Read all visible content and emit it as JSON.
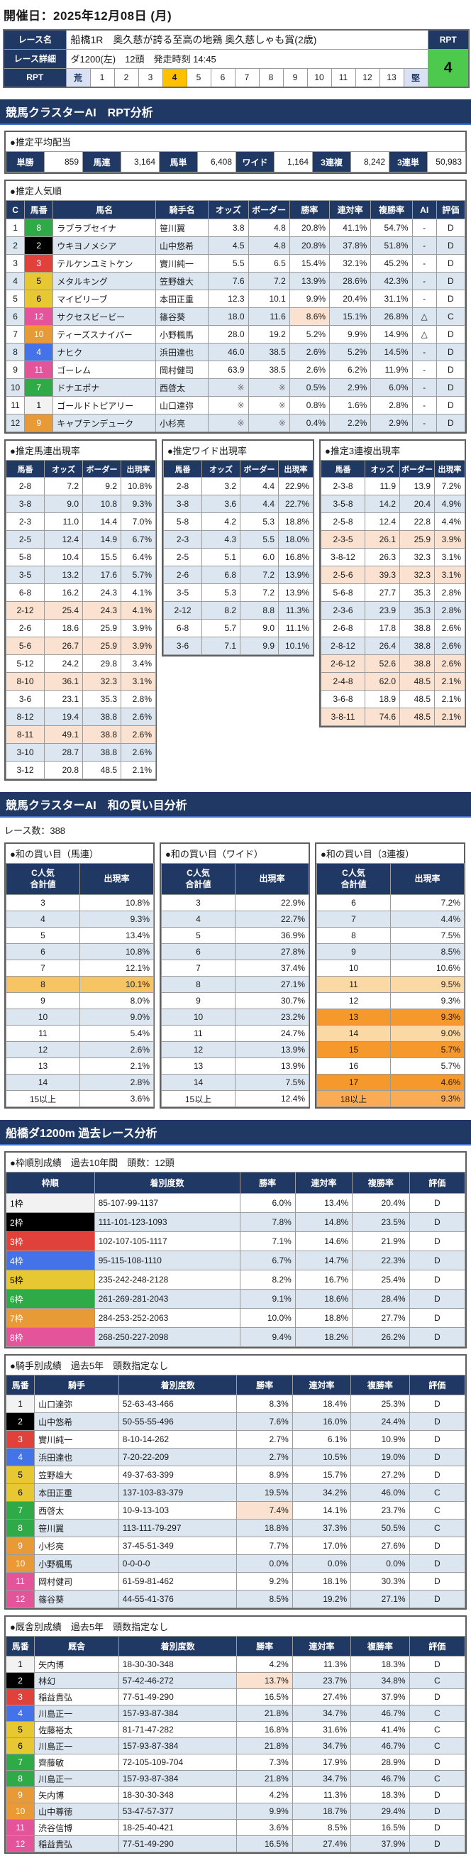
{
  "page": {
    "date_label": "開催日：2025年12月08日 (月)"
  },
  "race_info": {
    "name_label": "レース名",
    "name": "船橋1R　奥久慈が誇る至高の地鶏 奥久慈しゃも賞(2歳)",
    "detail_label": "レース詳細",
    "detail": "ダ1200(左)　12頭　発走時刻 14:45",
    "rpt_label": "RPT",
    "rpt_value": "4",
    "scale_label": "RPT",
    "scale": [
      "荒",
      "1",
      "2",
      "3",
      "4",
      "5",
      "6",
      "7",
      "8",
      "9",
      "10",
      "11",
      "12",
      "13",
      "堅"
    ],
    "scale_active": "4"
  },
  "sections": {
    "rpt_analysis": "競馬クラスターAI　RPT分析",
    "wa_analysis": "競馬クラスターAI　和の買い目分析",
    "past_analysis": "船橋ダ1200m 過去レース分析"
  },
  "race_count_label": "レース数：388",
  "avg_payout": {
    "title": "●推定平均配当",
    "items": [
      [
        "単勝",
        "859"
      ],
      [
        "馬連",
        "3,164"
      ],
      [
        "馬単",
        "6,408"
      ],
      [
        "ワイド",
        "1,164"
      ],
      [
        "3連複",
        "8,242"
      ],
      [
        "3連単",
        "50,983"
      ]
    ]
  },
  "popularity": {
    "title": "●推定人気順",
    "headers": [
      "C",
      "馬番",
      "馬名",
      "騎手名",
      "オッズ",
      "ボーダー",
      "勝率",
      "連対率",
      "複勝率",
      "AI",
      "評価"
    ],
    "rows": [
      [
        "1",
        6,
        "8",
        "ラブラブセイナ",
        "笹川翼",
        "3.8",
        "4.8",
        "20.8%",
        0,
        "41.1%",
        "54.7%",
        "-",
        "D"
      ],
      [
        "2",
        2,
        "2",
        "ウキヨノメシア",
        "山中悠希",
        "4.5",
        "4.8",
        "20.8%",
        0,
        "37.8%",
        "51.8%",
        "-",
        "D"
      ],
      [
        "3",
        3,
        "3",
        "テルケンユミトケン",
        "實川純一",
        "5.5",
        "6.5",
        "15.4%",
        0,
        "32.1%",
        "45.2%",
        "-",
        "D"
      ],
      [
        "4",
        5,
        "5",
        "メタルキング",
        "笠野雄大",
        "7.6",
        "7.2",
        "13.9%",
        0,
        "28.6%",
        "42.3%",
        "-",
        "D"
      ],
      [
        "5",
        5,
        "6",
        "マイビリーブ",
        "本田正重",
        "12.3",
        "10.1",
        "9.9%",
        0,
        "20.4%",
        "31.1%",
        "-",
        "D"
      ],
      [
        "6",
        8,
        "12",
        "サクセスビービー",
        "篠谷葵",
        "18.0",
        "11.6",
        "8.6%",
        1,
        "15.1%",
        "26.8%",
        "△",
        "C"
      ],
      [
        "7",
        7,
        "10",
        "ティーズスナイパー",
        "小野楓馬",
        "28.0",
        "19.2",
        "5.2%",
        0,
        "9.9%",
        "14.9%",
        "△",
        "D"
      ],
      [
        "8",
        4,
        "4",
        "ナヒク",
        "浜田達也",
        "46.0",
        "38.5",
        "2.6%",
        0,
        "5.2%",
        "14.5%",
        "-",
        "D"
      ],
      [
        "9",
        8,
        "11",
        "ゴーレム",
        "岡村健司",
        "63.9",
        "38.5",
        "2.6%",
        0,
        "6.2%",
        "11.9%",
        "-",
        "D"
      ],
      [
        "10",
        6,
        "7",
        "ドナエポナ",
        "西啓太",
        "※",
        "※",
        "0.5%",
        0,
        "2.9%",
        "6.0%",
        "-",
        "D"
      ],
      [
        "11",
        1,
        "1",
        "ゴールドトピアリー",
        "山口達弥",
        "※",
        "※",
        "0.8%",
        0,
        "1.6%",
        "2.8%",
        "-",
        "D"
      ],
      [
        "12",
        7,
        "9",
        "キャプテンデューク",
        "小杉亮",
        "※",
        "※",
        "0.4%",
        0,
        "2.2%",
        "2.9%",
        "-",
        "D"
      ]
    ]
  },
  "occurrence": {
    "headers": [
      "馬番",
      "オッズ",
      "ボーダー",
      "出現率"
    ],
    "umaren": {
      "title": "●推定馬連出現率",
      "rows": [
        [
          "2-8",
          "7.2",
          "9.2",
          "10.8%",
          "w"
        ],
        [
          "3-8",
          "9.0",
          "10.8",
          "9.3%",
          "b"
        ],
        [
          "2-3",
          "11.0",
          "14.4",
          "7.0%",
          "w"
        ],
        [
          "2-5",
          "12.4",
          "14.9",
          "6.7%",
          "b"
        ],
        [
          "5-8",
          "10.4",
          "15.5",
          "6.4%",
          "w"
        ],
        [
          "3-5",
          "13.2",
          "17.6",
          "5.7%",
          "b"
        ],
        [
          "6-8",
          "16.2",
          "24.3",
          "4.1%",
          "w"
        ],
        [
          "2-12",
          "25.4",
          "24.3",
          "4.1%",
          "p"
        ],
        [
          "2-6",
          "18.6",
          "25.9",
          "3.9%",
          "w"
        ],
        [
          "5-6",
          "26.7",
          "25.9",
          "3.9%",
          "p"
        ],
        [
          "5-12",
          "24.2",
          "29.8",
          "3.4%",
          "w"
        ],
        [
          "8-10",
          "36.1",
          "32.3",
          "3.1%",
          "p"
        ],
        [
          "3-6",
          "23.1",
          "35.3",
          "2.8%",
          "w"
        ],
        [
          "8-12",
          "19.4",
          "38.8",
          "2.6%",
          "b"
        ],
        [
          "8-11",
          "49.1",
          "38.8",
          "2.6%",
          "p"
        ],
        [
          "3-10",
          "28.7",
          "38.8",
          "2.6%",
          "b"
        ],
        [
          "3-12",
          "20.8",
          "48.5",
          "2.1%",
          "w"
        ]
      ]
    },
    "wide": {
      "title": "●推定ワイド出現率",
      "rows": [
        [
          "2-8",
          "3.2",
          "4.4",
          "22.9%",
          "w"
        ],
        [
          "3-8",
          "3.6",
          "4.4",
          "22.7%",
          "b"
        ],
        [
          "5-8",
          "4.2",
          "5.3",
          "18.8%",
          "w"
        ],
        [
          "2-3",
          "4.3",
          "5.5",
          "18.0%",
          "b"
        ],
        [
          "2-5",
          "5.1",
          "6.0",
          "16.8%",
          "w"
        ],
        [
          "2-6",
          "6.8",
          "7.2",
          "13.9%",
          "b"
        ],
        [
          "3-5",
          "5.3",
          "7.2",
          "13.9%",
          "w"
        ],
        [
          "2-12",
          "8.2",
          "8.8",
          "11.3%",
          "b"
        ],
        [
          "6-8",
          "5.7",
          "9.0",
          "11.1%",
          "w"
        ],
        [
          "3-6",
          "7.1",
          "9.9",
          "10.1%",
          "b"
        ]
      ]
    },
    "sanrenpuku": {
      "title": "●推定3連複出現率",
      "rows": [
        [
          "2-3-8",
          "11.9",
          "13.9",
          "7.2%",
          "w"
        ],
        [
          "3-5-8",
          "14.2",
          "20.4",
          "4.9%",
          "b"
        ],
        [
          "2-5-8",
          "12.4",
          "22.8",
          "4.4%",
          "w"
        ],
        [
          "2-3-5",
          "26.1",
          "25.9",
          "3.9%",
          "p"
        ],
        [
          "3-8-12",
          "26.3",
          "32.3",
          "3.1%",
          "w"
        ],
        [
          "2-5-6",
          "39.3",
          "32.3",
          "3.1%",
          "p"
        ],
        [
          "5-6-8",
          "27.7",
          "35.3",
          "2.8%",
          "w"
        ],
        [
          "2-3-6",
          "23.9",
          "35.3",
          "2.8%",
          "b"
        ],
        [
          "2-6-8",
          "17.8",
          "38.8",
          "2.6%",
          "w"
        ],
        [
          "2-8-12",
          "26.4",
          "38.8",
          "2.6%",
          "b"
        ],
        [
          "2-6-12",
          "52.6",
          "38.8",
          "2.6%",
          "p"
        ],
        [
          "2-4-8",
          "62.0",
          "48.5",
          "2.1%",
          "p"
        ],
        [
          "3-6-8",
          "18.9",
          "48.5",
          "2.1%",
          "w"
        ],
        [
          "3-8-11",
          "74.6",
          "48.5",
          "2.1%",
          "p"
        ]
      ]
    }
  },
  "wa_kaime": {
    "headers": [
      "C人気\n合計値",
      "出現率"
    ],
    "umaren": {
      "title": "●和の買い目（馬連）",
      "rows": [
        [
          "3",
          "10.8%",
          "w"
        ],
        [
          "4",
          "9.3%",
          "b"
        ],
        [
          "5",
          "13.4%",
          "w"
        ],
        [
          "6",
          "10.8%",
          "b"
        ],
        [
          "7",
          "12.1%",
          "w"
        ],
        [
          "8",
          "10.1%",
          "g"
        ],
        [
          "9",
          "8.0%",
          "w"
        ],
        [
          "10",
          "9.0%",
          "b"
        ],
        [
          "11",
          "5.4%",
          "w"
        ],
        [
          "12",
          "2.6%",
          "b"
        ],
        [
          "13",
          "2.1%",
          "w"
        ],
        [
          "14",
          "2.8%",
          "b"
        ],
        [
          "15以上",
          "3.6%",
          "w"
        ]
      ]
    },
    "wide": {
      "title": "●和の買い目（ワイド）",
      "rows": [
        [
          "3",
          "22.9%",
          "w"
        ],
        [
          "4",
          "22.7%",
          "b"
        ],
        [
          "5",
          "36.9%",
          "w"
        ],
        [
          "6",
          "27.8%",
          "b"
        ],
        [
          "7",
          "37.4%",
          "w"
        ],
        [
          "8",
          "27.1%",
          "b"
        ],
        [
          "9",
          "30.7%",
          "w"
        ],
        [
          "10",
          "23.2%",
          "b"
        ],
        [
          "11",
          "24.7%",
          "w"
        ],
        [
          "12",
          "13.9%",
          "b"
        ],
        [
          "13",
          "13.9%",
          "w"
        ],
        [
          "14",
          "7.5%",
          "b"
        ],
        [
          "15以上",
          "12.4%",
          "w"
        ]
      ]
    },
    "sanrenpuku": {
      "title": "●和の買い目（3連複）",
      "rows": [
        [
          "6",
          "7.2%",
          "w"
        ],
        [
          "7",
          "4.4%",
          "b"
        ],
        [
          "8",
          "7.5%",
          "w"
        ],
        [
          "9",
          "8.5%",
          "b"
        ],
        [
          "10",
          "10.6%",
          "w"
        ],
        [
          "11",
          "9.5%",
          "o1"
        ],
        [
          "12",
          "9.3%",
          "w"
        ],
        [
          "13",
          "9.3%",
          "o3"
        ],
        [
          "14",
          "9.0%",
          "o1"
        ],
        [
          "15",
          "5.7%",
          "o3"
        ],
        [
          "16",
          "5.7%",
          "w"
        ],
        [
          "17",
          "4.6%",
          "o3"
        ],
        [
          "18以上",
          "9.3%",
          "o2"
        ]
      ]
    }
  },
  "past": {
    "waku": {
      "title": "●枠順別成績　過去10年間　頭数：12頭",
      "headers": [
        "枠順",
        "着別度数",
        "勝率",
        "連対率",
        "複勝率",
        "評価"
      ],
      "rows": [
        [
          1,
          "1枠",
          "85-107-99-1137",
          "6.0%",
          "13.4%",
          "20.4%",
          "D"
        ],
        [
          2,
          "2枠",
          "111-101-123-1093",
          "7.8%",
          "14.8%",
          "23.5%",
          "D"
        ],
        [
          3,
          "3枠",
          "102-107-105-1117",
          "7.1%",
          "14.6%",
          "21.9%",
          "D"
        ],
        [
          4,
          "4枠",
          "95-115-108-1110",
          "6.7%",
          "14.7%",
          "22.3%",
          "D"
        ],
        [
          5,
          "5枠",
          "235-242-248-2128",
          "8.2%",
          "16.7%",
          "25.4%",
          "D"
        ],
        [
          6,
          "6枠",
          "261-269-281-2043",
          "9.1%",
          "18.6%",
          "28.4%",
          "D"
        ],
        [
          7,
          "7枠",
          "284-253-252-2063",
          "10.0%",
          "18.8%",
          "27.7%",
          "D"
        ],
        [
          8,
          "8枠",
          "268-250-227-2098",
          "9.4%",
          "18.2%",
          "26.2%",
          "D"
        ]
      ]
    },
    "jockey": {
      "title": "●騎手別成績　過去5年　頭数指定なし",
      "headers": [
        "馬番",
        "騎手",
        "着別度数",
        "勝率",
        "連対率",
        "複勝率",
        "評価"
      ],
      "rows": [
        [
          1,
          "1",
          "山口達弥",
          "52-63-43-466",
          "8.3%",
          0,
          "18.4%",
          "25.3%",
          "D"
        ],
        [
          2,
          "2",
          "山中悠希",
          "50-55-55-496",
          "7.6%",
          0,
          "16.0%",
          "24.4%",
          "D"
        ],
        [
          3,
          "3",
          "實川純一",
          "8-10-14-262",
          "2.7%",
          0,
          "6.1%",
          "10.9%",
          "D"
        ],
        [
          4,
          "4",
          "浜田達也",
          "7-20-22-209",
          "2.7%",
          0,
          "10.5%",
          "19.0%",
          "D"
        ],
        [
          5,
          "5",
          "笠野雄大",
          "49-37-63-399",
          "8.9%",
          0,
          "15.7%",
          "27.2%",
          "D"
        ],
        [
          5,
          "6",
          "本田正重",
          "137-103-83-379",
          "19.5%",
          0,
          "34.2%",
          "46.0%",
          "C"
        ],
        [
          6,
          "7",
          "西啓太",
          "10-9-13-103",
          "7.4%",
          1,
          "14.1%",
          "23.7%",
          "C"
        ],
        [
          6,
          "8",
          "笹川翼",
          "113-111-79-297",
          "18.8%",
          0,
          "37.3%",
          "50.5%",
          "C"
        ],
        [
          7,
          "9",
          "小杉亮",
          "37-45-51-349",
          "7.7%",
          0,
          "17.0%",
          "27.6%",
          "D"
        ],
        [
          7,
          "10",
          "小野楓馬",
          "0-0-0-0",
          "0.0%",
          0,
          "0.0%",
          "0.0%",
          "D"
        ],
        [
          8,
          "11",
          "岡村健司",
          "61-59-81-462",
          "9.2%",
          0,
          "18.1%",
          "30.3%",
          "D"
        ],
        [
          8,
          "12",
          "篠谷葵",
          "44-55-41-376",
          "8.5%",
          0,
          "19.2%",
          "27.1%",
          "D"
        ]
      ]
    },
    "stable": {
      "title": "●厩舎別成績　過去5年　頭数指定なし",
      "headers": [
        "馬番",
        "厩舎",
        "着別度数",
        "勝率",
        "連対率",
        "複勝率",
        "評価"
      ],
      "rows": [
        [
          1,
          "1",
          "矢内博",
          "18-30-30-348",
          "4.2%",
          0,
          "11.3%",
          "18.3%",
          "D"
        ],
        [
          2,
          "2",
          "林幻",
          "57-42-46-272",
          "13.7%",
          1,
          "23.7%",
          "34.8%",
          "C"
        ],
        [
          3,
          "3",
          "稲益貴弘",
          "77-51-49-290",
          "16.5%",
          0,
          "27.4%",
          "37.9%",
          "D"
        ],
        [
          4,
          "4",
          "川島正一",
          "157-93-87-384",
          "21.8%",
          0,
          "34.7%",
          "46.7%",
          "C"
        ],
        [
          5,
          "5",
          "佐藤裕太",
          "81-71-47-282",
          "16.8%",
          0,
          "31.6%",
          "41.4%",
          "C"
        ],
        [
          5,
          "6",
          "川島正一",
          "157-93-87-384",
          "21.8%",
          0,
          "34.7%",
          "46.7%",
          "C"
        ],
        [
          6,
          "7",
          "齊藤敏",
          "72-105-109-704",
          "7.3%",
          0,
          "17.9%",
          "28.9%",
          "D"
        ],
        [
          6,
          "8",
          "川島正一",
          "157-93-87-384",
          "21.8%",
          0,
          "34.7%",
          "46.7%",
          "C"
        ],
        [
          7,
          "9",
          "矢内博",
          "18-30-30-348",
          "4.2%",
          0,
          "11.3%",
          "18.3%",
          "D"
        ],
        [
          7,
          "10",
          "山中尊徳",
          "53-47-57-377",
          "9.9%",
          0,
          "18.7%",
          "29.4%",
          "D"
        ],
        [
          8,
          "11",
          "渋谷信博",
          "18-25-40-421",
          "3.6%",
          0,
          "8.5%",
          "16.5%",
          "D"
        ],
        [
          8,
          "12",
          "稲益貴弘",
          "77-51-49-290",
          "16.5%",
          0,
          "27.4%",
          "37.9%",
          "D"
        ]
      ]
    }
  },
  "colors": {
    "vars": {
      "navy": "#1F3864",
      "alt": "#DCE6F1",
      "peach": "#FBE2D0",
      "gold": "#F7C463",
      "o1": "#FBD9A5",
      "o2": "#F9AC55",
      "o3": "#F6992C",
      "active": "#FFC000",
      "endcap": "#D9E1F2",
      "green": "#4DC94D"
    },
    "frames": [
      {
        "bg": "#F2F2F2",
        "fg": "#000000"
      },
      {
        "bg": "#000000",
        "fg": "#FFFFFF"
      },
      {
        "bg": "#E0413B",
        "fg": "#FFFFFF"
      },
      {
        "bg": "#4472E8",
        "fg": "#FFFFFF"
      },
      {
        "bg": "#E7C832",
        "fg": "#000000"
      },
      {
        "bg": "#2EAB46",
        "fg": "#FFFFFF"
      },
      {
        "bg": "#E79A35",
        "fg": "#FFFFFF"
      },
      {
        "bg": "#E4549A",
        "fg": "#FFFFFF"
      }
    ]
  }
}
